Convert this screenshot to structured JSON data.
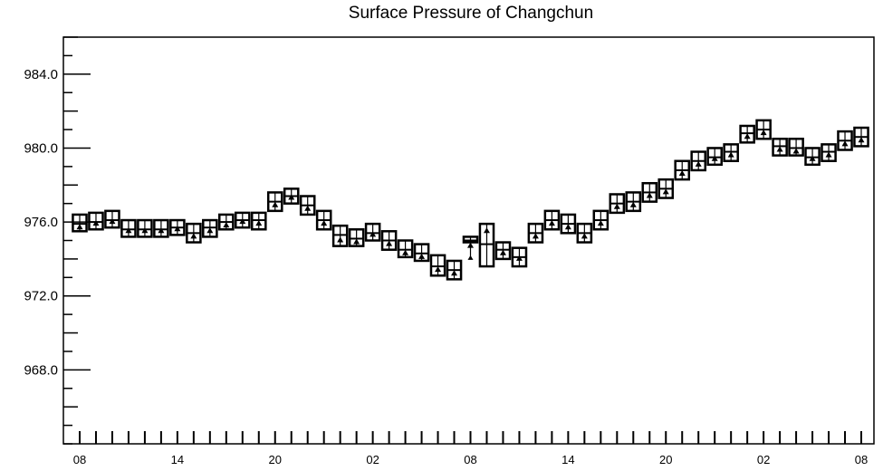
{
  "chart_data": {
    "type": "box",
    "title": "Surface Pressure of Changchun",
    "xlabel": "",
    "ylabel": "",
    "ylim": [
      964.0,
      986.0
    ],
    "yticks": [
      968.0,
      972.0,
      976.0,
      980.0,
      984.0
    ],
    "ytick_labels": [
      "968.0",
      "972.0",
      "976.0",
      "980.0",
      "984.0"
    ],
    "xticks": [
      0,
      6,
      12,
      18,
      24,
      30,
      36,
      42,
      48
    ],
    "xtick_labels": [
      "08",
      "14",
      "20",
      "02",
      "08",
      "14",
      "20",
      "02",
      "08"
    ],
    "x_step_hours": 1,
    "grid": false,
    "boxes": [
      {
        "x": 0,
        "q1": 975.5,
        "median": 975.9,
        "q3": 976.4,
        "mean": 975.7
      },
      {
        "x": 1,
        "q1": 975.6,
        "median": 976.0,
        "q3": 976.5,
        "mean": 975.9
      },
      {
        "x": 2,
        "q1": 975.7,
        "median": 976.1,
        "q3": 976.6,
        "mean": 976.0
      },
      {
        "x": 3,
        "q1": 975.2,
        "median": 975.6,
        "q3": 976.1,
        "mean": 975.5
      },
      {
        "x": 4,
        "q1": 975.2,
        "median": 975.6,
        "q3": 976.1,
        "mean": 975.5
      },
      {
        "x": 5,
        "q1": 975.2,
        "median": 975.6,
        "q3": 976.1,
        "mean": 975.5
      },
      {
        "x": 6,
        "q1": 975.3,
        "median": 975.7,
        "q3": 976.1,
        "mean": 975.6
      },
      {
        "x": 7,
        "q1": 974.9,
        "median": 975.4,
        "q3": 975.9,
        "mean": 975.2
      },
      {
        "x": 8,
        "q1": 975.2,
        "median": 975.7,
        "q3": 976.1,
        "mean": 975.5
      },
      {
        "x": 9,
        "q1": 975.6,
        "median": 976.0,
        "q3": 976.4,
        "mean": 975.8
      },
      {
        "x": 10,
        "q1": 975.7,
        "median": 976.1,
        "q3": 976.5,
        "mean": 976.0
      },
      {
        "x": 11,
        "q1": 975.6,
        "median": 976.1,
        "q3": 976.5,
        "mean": 975.9
      },
      {
        "x": 12,
        "q1": 976.6,
        "median": 977.1,
        "q3": 977.6,
        "mean": 976.9
      },
      {
        "x": 13,
        "q1": 977.0,
        "median": 977.4,
        "q3": 977.8,
        "mean": 977.3
      },
      {
        "x": 14,
        "q1": 976.4,
        "median": 976.9,
        "q3": 977.4,
        "mean": 976.7
      },
      {
        "x": 15,
        "q1": 975.6,
        "median": 976.1,
        "q3": 976.6,
        "mean": 975.9
      },
      {
        "x": 16,
        "q1": 974.7,
        "median": 975.3,
        "q3": 975.8,
        "mean": 975.0
      },
      {
        "x": 17,
        "q1": 974.7,
        "median": 975.1,
        "q3": 975.6,
        "mean": 974.9
      },
      {
        "x": 18,
        "q1": 975.0,
        "median": 975.4,
        "q3": 975.9,
        "mean": 975.3
      },
      {
        "x": 19,
        "q1": 974.5,
        "median": 975.0,
        "q3": 975.5,
        "mean": 974.8
      },
      {
        "x": 20,
        "q1": 974.1,
        "median": 974.5,
        "q3": 975.0,
        "mean": 974.3
      },
      {
        "x": 21,
        "q1": 973.9,
        "median": 974.3,
        "q3": 974.8,
        "mean": 974.1
      },
      {
        "x": 22,
        "q1": 973.1,
        "median": 973.6,
        "q3": 974.2,
        "mean": 973.4
      },
      {
        "x": 23,
        "q1": 972.9,
        "median": 973.4,
        "q3": 973.9,
        "mean": 973.2
      },
      {
        "x": 24,
        "q1": 974.9,
        "median": 975.0,
        "q3": 975.2,
        "mean": 974.7,
        "whisker_low": 974.0,
        "whisker_high": 975.2
      },
      {
        "x": 25,
        "q1": 973.6,
        "median": 974.8,
        "q3": 975.9,
        "mean": 975.5
      },
      {
        "x": 26,
        "q1": 974.0,
        "median": 974.5,
        "q3": 974.9,
        "mean": 974.3
      },
      {
        "x": 27,
        "q1": 973.6,
        "median": 974.1,
        "q3": 974.6,
        "mean": 974.0
      },
      {
        "x": 28,
        "q1": 974.9,
        "median": 975.4,
        "q3": 975.9,
        "mean": 975.2
      },
      {
        "x": 29,
        "q1": 975.6,
        "median": 976.1,
        "q3": 976.6,
        "mean": 975.9
      },
      {
        "x": 30,
        "q1": 975.4,
        "median": 975.9,
        "q3": 976.4,
        "mean": 975.7
      },
      {
        "x": 31,
        "q1": 974.9,
        "median": 975.4,
        "q3": 975.9,
        "mean": 975.2
      },
      {
        "x": 32,
        "q1": 975.6,
        "median": 976.1,
        "q3": 976.6,
        "mean": 975.9
      },
      {
        "x": 33,
        "q1": 976.5,
        "median": 977.0,
        "q3": 977.5,
        "mean": 976.8
      },
      {
        "x": 34,
        "q1": 976.6,
        "median": 977.1,
        "q3": 977.6,
        "mean": 976.9
      },
      {
        "x": 35,
        "q1": 977.1,
        "median": 977.6,
        "q3": 978.1,
        "mean": 977.4
      },
      {
        "x": 36,
        "q1": 977.3,
        "median": 977.8,
        "q3": 978.3,
        "mean": 977.6
      },
      {
        "x": 37,
        "q1": 978.3,
        "median": 978.8,
        "q3": 979.3,
        "mean": 978.6
      },
      {
        "x": 38,
        "q1": 978.8,
        "median": 979.3,
        "q3": 979.8,
        "mean": 979.1
      },
      {
        "x": 39,
        "q1": 979.1,
        "median": 979.5,
        "q3": 980.0,
        "mean": 979.4
      },
      {
        "x": 40,
        "q1": 979.3,
        "median": 979.8,
        "q3": 980.2,
        "mean": 979.6
      },
      {
        "x": 41,
        "q1": 980.3,
        "median": 980.8,
        "q3": 981.2,
        "mean": 980.6
      },
      {
        "x": 42,
        "q1": 980.5,
        "median": 981.0,
        "q3": 981.5,
        "mean": 980.8
      },
      {
        "x": 43,
        "q1": 979.6,
        "median": 980.1,
        "q3": 980.5,
        "mean": 979.9
      },
      {
        "x": 44,
        "q1": 979.6,
        "median": 980.0,
        "q3": 980.5,
        "mean": 979.8
      },
      {
        "x": 45,
        "q1": 979.1,
        "median": 979.5,
        "q3": 980.0,
        "mean": 979.4
      },
      {
        "x": 46,
        "q1": 979.3,
        "median": 979.8,
        "q3": 980.2,
        "mean": 979.6
      },
      {
        "x": 47,
        "q1": 979.9,
        "median": 980.4,
        "q3": 980.9,
        "mean": 980.2
      },
      {
        "x": 48,
        "q1": 980.1,
        "median": 980.6,
        "q3": 981.1,
        "mean": 980.4
      }
    ]
  }
}
